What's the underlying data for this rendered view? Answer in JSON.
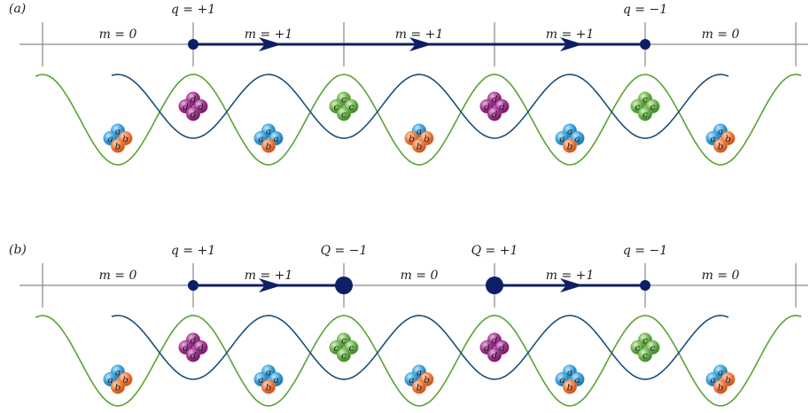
{
  "colors": {
    "axis": "#888888",
    "arrow": "#0d1f66",
    "well_green": "#5aa332",
    "well_blue": "#1a4f7a",
    "ball_a": "#3a9fd8",
    "ball_b": "#f07b3f",
    "ball_c": "#6ab04c",
    "ball_d": "#a2338f"
  },
  "panels": [
    {
      "tag": "(a)",
      "charges": [
        {
          "label": "q = +1",
          "kind": "small"
        },
        {
          "label": "q = −1",
          "kind": "small"
        }
      ],
      "segments": [
        "m = 0",
        "m = +1",
        "m = +1",
        "m = +1",
        "m = 0"
      ],
      "wells": [
        {
          "letters": [
            "a",
            "a",
            "b",
            "b"
          ]
        },
        {
          "letters": [
            "d",
            "d",
            "d",
            "d"
          ]
        },
        {
          "letters": [
            "a",
            "a",
            "a",
            "b"
          ]
        },
        {
          "letters": [
            "c",
            "c",
            "c",
            "c"
          ]
        },
        {
          "letters": [
            "a",
            "b",
            "b",
            "b"
          ]
        },
        {
          "letters": [
            "d",
            "d",
            "d",
            "d"
          ]
        },
        {
          "letters": [
            "a",
            "a",
            "a",
            "b"
          ]
        },
        {
          "letters": [
            "c",
            "c",
            "c",
            "c"
          ]
        },
        {
          "letters": [
            "a",
            "a",
            "b",
            "b"
          ]
        }
      ]
    },
    {
      "tag": "(b)",
      "charges": [
        {
          "label": "q = +1",
          "kind": "small"
        },
        {
          "label": "Q = −1",
          "kind": "big"
        },
        {
          "label": "Q = +1",
          "kind": "big"
        },
        {
          "label": "q = −1",
          "kind": "small"
        }
      ],
      "segments": [
        "m = 0",
        "m = +1",
        "m = 0",
        "m = +1",
        "m = 0"
      ],
      "wells": [
        {
          "letters": [
            "a",
            "a",
            "b",
            "b"
          ]
        },
        {
          "letters": [
            "d",
            "d",
            "d",
            "d"
          ]
        },
        {
          "letters": [
            "a",
            "a",
            "a",
            "b"
          ]
        },
        {
          "letters": [
            "c",
            "c",
            "c",
            "c"
          ]
        },
        {
          "letters": [
            "a",
            "a",
            "b",
            "b"
          ]
        },
        {
          "letters": [
            "d",
            "d",
            "d",
            "d"
          ]
        },
        {
          "letters": [
            "a",
            "a",
            "a",
            "b"
          ]
        },
        {
          "letters": [
            "c",
            "c",
            "c",
            "c"
          ]
        },
        {
          "letters": [
            "a",
            "a",
            "b",
            "b"
          ]
        }
      ]
    }
  ]
}
